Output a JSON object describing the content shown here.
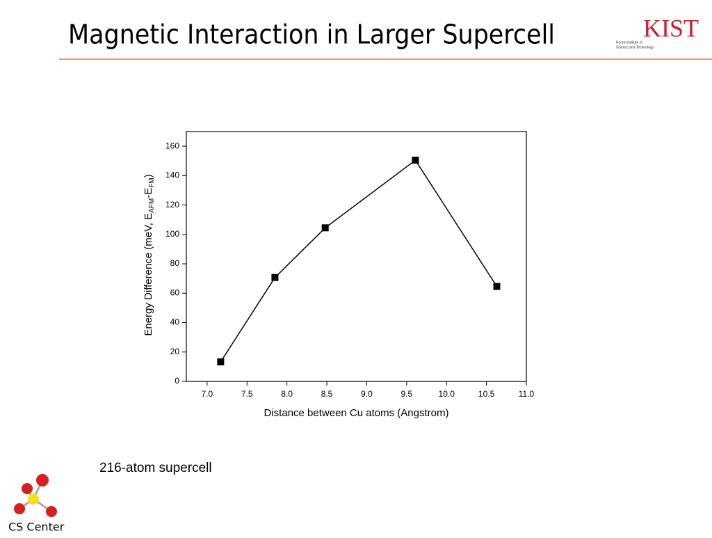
{
  "slide": {
    "title": "Magnetic Interaction in Larger Supercell",
    "caption": "216-atom supercell",
    "logo_text": "KIST",
    "logo_subtitle": [
      "Korea Institute of",
      "Science and Technology"
    ],
    "footer_logo": "CS Center"
  },
  "chart_data": {
    "type": "line",
    "x_label": "Distance between Cu atoms (Angstrom)",
    "y_label": [
      "Energy Difference (meV, E",
      "AFM",
      "-E",
      "FM",
      ")"
    ],
    "x": [
      7.17,
      7.85,
      8.48,
      9.61,
      10.63
    ],
    "series": [
      {
        "color": "#000000",
        "values": [
          13.3,
          70.7,
          104.5,
          150.5,
          64.6
        ]
      }
    ],
    "xlim": [
      6.74,
      11.0
    ],
    "xticks": [
      {
        "value": 7,
        "label": "7.0"
      },
      7.5,
      {
        "value": 8,
        "label": "8.0"
      },
      8.5,
      {
        "value": 9,
        "label": "9.0"
      },
      9.5,
      {
        "value": 10,
        "label": "10.0"
      },
      10.5,
      {
        "value": 11,
        "label": "11.0"
      }
    ],
    "ylim": [
      0,
      170
    ],
    "yticks": [
      0,
      20,
      40,
      60,
      80,
      100,
      120,
      140,
      160
    ],
    "marker": "square"
  }
}
